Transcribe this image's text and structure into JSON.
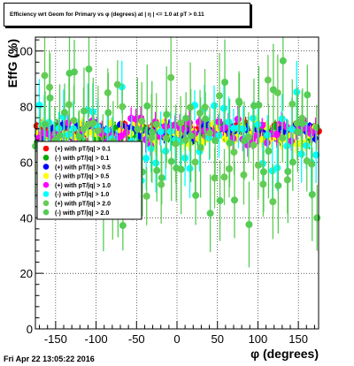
{
  "footer": {
    "date": "Fri Apr 22 13:05:22 2016"
  },
  "chart_data": {
    "type": "scatter",
    "title": "Efficiency wrt Geom for Primary vs φ (degrees) at | η | <= 1.0 at pT > 0.11",
    "xlabel": "φ (degrees)",
    "ylabel": "EffG (%)",
    "xlim": [
      -175,
      175
    ],
    "ylim": [
      0,
      105
    ],
    "xticks": [
      -150,
      -100,
      -50,
      0,
      50,
      100,
      150
    ],
    "yticks": [
      0,
      20,
      40,
      60,
      80,
      100
    ],
    "grid": true,
    "legend_position": "left-middle",
    "series": [
      {
        "name": "(+) with pT/|q| > 0.1",
        "color": "#ff0000",
        "marker": "circle",
        "y_center": 71.5,
        "spread": 2.5
      },
      {
        "name": "(-) with pT/|q| > 0.1",
        "color": "#00aa00",
        "marker": "circle",
        "y_center": 70.0,
        "spread": 3.0
      },
      {
        "name": "(+) with pT/|q| > 0.5",
        "color": "#0000ff",
        "marker": "circle",
        "y_center": 71.0,
        "spread": 2.5
      },
      {
        "name": "(-) with pT/|q| > 0.5",
        "color": "#ffff00",
        "marker": "circle",
        "y_center": 70.5,
        "spread": 4.0
      },
      {
        "name": "(+) with pT/|q| > 1.0",
        "color": "#ff00ff",
        "marker": "circle",
        "y_center": 71.0,
        "spread": 5.0
      },
      {
        "name": "(-) with pT/|q| > 1.0",
        "color": "#00ffff",
        "marker": "circle",
        "y_center": 70.0,
        "spread": 12.0
      },
      {
        "name": "(+) with pT/|q| > 2.0",
        "color": "#66cc55",
        "marker": "circle",
        "y_center": 68.0,
        "spread": 18.0
      },
      {
        "name": "(-) with pT/|q| > 2.0",
        "color": "#55cc55",
        "marker": "circle",
        "y_center": 68.0,
        "spread": 20.0
      }
    ]
  }
}
